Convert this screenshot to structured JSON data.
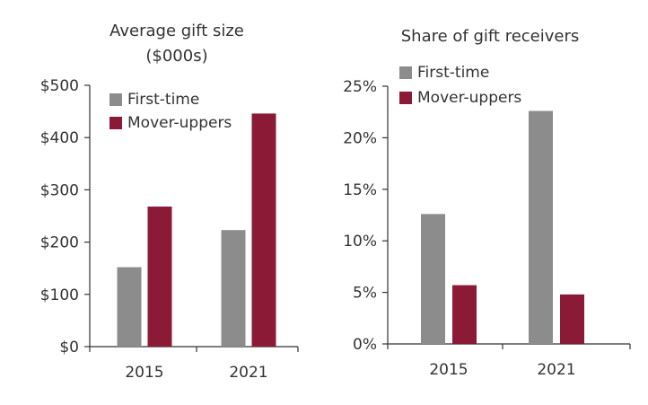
{
  "colors": {
    "first_time": "#8c8c8c",
    "mover_uppers": "#8b1a37",
    "axis": "#333333"
  },
  "chart_data": [
    {
      "type": "bar",
      "title": "Average gift size",
      "subtitle": "($000s)",
      "categories": [
        "2015",
        "2021"
      ],
      "series": [
        {
          "name": "First-time",
          "values": [
            152,
            223
          ]
        },
        {
          "name": "Mover-uppers",
          "values": [
            268,
            446
          ]
        }
      ],
      "ylim": [
        0,
        500
      ],
      "yticks": [
        0,
        100,
        200,
        300,
        400,
        500
      ],
      "ytick_labels": [
        "$0",
        "$100",
        "$200",
        "$300",
        "$400",
        "$500"
      ],
      "grid": false,
      "legend": "top-left"
    },
    {
      "type": "bar",
      "title": "Share of gift receivers",
      "categories": [
        "2015",
        "2021"
      ],
      "series": [
        {
          "name": "First-time",
          "values": [
            12.6,
            22.6
          ]
        },
        {
          "name": "Mover-uppers",
          "values": [
            5.7,
            4.8
          ]
        }
      ],
      "ylim": [
        0,
        25
      ],
      "yticks": [
        0,
        5,
        10,
        15,
        20,
        25
      ],
      "ytick_labels": [
        "0%",
        "5%",
        "10%",
        "15%",
        "20%",
        "25%"
      ],
      "grid": false,
      "legend": "top-left"
    }
  ]
}
